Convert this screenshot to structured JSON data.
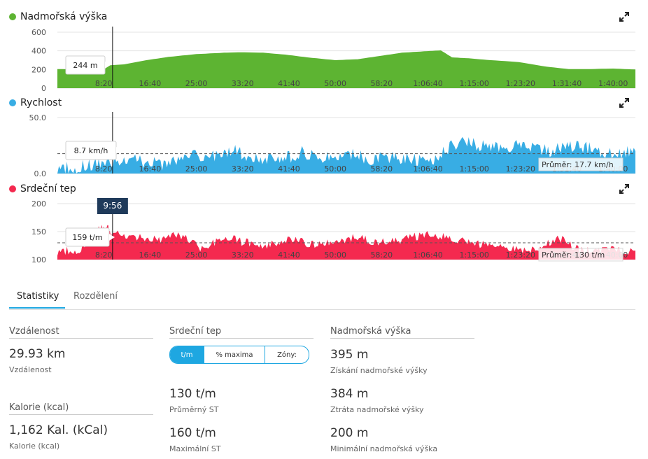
{
  "charts": {
    "elevation": {
      "title": "Nadmořská výška",
      "color": "#5db432",
      "ticks": [
        "600",
        "400",
        "200",
        "0"
      ],
      "tooltip": "244 m"
    },
    "speed": {
      "title": "Rychlost",
      "color": "#38ade4",
      "ticks": [
        "50.0",
        "0.0"
      ],
      "tooltip": "8.7 km/h",
      "avg_label": "Průměr: 17.7 km/h"
    },
    "heart": {
      "title": "Srdeční tep",
      "color": "#f4294f",
      "ticks": [
        "200",
        "150",
        "100"
      ],
      "tooltip": "159 t/m",
      "avg_label": "Průměr: 130 t/m",
      "cursor_time": "9:56"
    }
  },
  "x_labels": [
    "8:20",
    "16:40",
    "25:00",
    "33:20",
    "41:40",
    "50:00",
    "58:20",
    "1:06:40",
    "1:15:00",
    "1:23:20",
    "1:31:40",
    "1:40:00"
  ],
  "chart_data": [
    {
      "type": "area",
      "title": "Nadmořská výška",
      "ylim": [
        0,
        600
      ],
      "x_minutes": [
        0,
        5,
        9,
        12,
        16,
        20,
        25,
        30,
        33,
        37,
        41,
        45,
        50,
        54,
        58,
        62,
        66,
        69,
        71,
        74,
        78,
        83,
        88,
        92,
        96,
        100,
        104
      ],
      "y": [
        205,
        200,
        244,
        255,
        300,
        335,
        365,
        380,
        385,
        380,
        360,
        330,
        300,
        310,
        345,
        380,
        395,
        405,
        330,
        320,
        300,
        280,
        230,
        205,
        205,
        210,
        200
      ]
    },
    {
      "type": "area",
      "title": "Rychlost",
      "ylim": [
        0,
        50
      ],
      "avg": 17.7,
      "x_minutes": [
        0,
        4,
        8,
        12,
        16,
        20,
        24,
        28,
        32,
        36,
        40,
        44,
        48,
        52,
        56,
        60,
        64,
        68,
        72,
        76,
        80,
        84,
        88,
        92,
        96,
        100,
        104
      ],
      "y": [
        5,
        6,
        8.7,
        14,
        10,
        8,
        17,
        16,
        20,
        14,
        12,
        19,
        15,
        18,
        13,
        15,
        12,
        14,
        28,
        25,
        22,
        26,
        20,
        24,
        22,
        18,
        20
      ]
    },
    {
      "type": "area",
      "title": "Srdeční tep",
      "ylim": [
        100,
        200
      ],
      "avg": 130,
      "x_minutes": [
        0,
        4,
        8,
        10,
        14,
        18,
        22,
        26,
        30,
        34,
        38,
        42,
        46,
        50,
        54,
        58,
        62,
        66,
        70,
        74,
        78,
        82,
        86,
        90,
        94,
        98,
        104
      ],
      "y": [
        115,
        118,
        159,
        150,
        140,
        135,
        145,
        120,
        140,
        130,
        125,
        135,
        128,
        132,
        140,
        130,
        135,
        145,
        140,
        130,
        125,
        120,
        118,
        140,
        115,
        118,
        116
      ]
    }
  ],
  "tabs": {
    "statistics": "Statistiky",
    "splits": "Rozdělení"
  },
  "stats": {
    "distance": {
      "header": "Vzdálenost",
      "value": "29.93 km",
      "label": "Vzdálenost"
    },
    "calories": {
      "header": "Kalorie (kcal)",
      "value": "1,162 Kal. (kCal)",
      "label": "Kalorie (kcal)"
    },
    "heart": {
      "header": "Srdeční tep",
      "seg": [
        "t/m",
        "% maxima",
        "Zóny:"
      ],
      "avg_value": "130 t/m",
      "avg_label": "Průměrný ST",
      "max_value": "160 t/m",
      "max_label": "Maximální ST"
    },
    "elevation": {
      "header": "Nadmořská výška",
      "gain_value": "395 m",
      "gain_label": "Získání nadmořské výšky",
      "loss_value": "384 m",
      "loss_label": "Ztráta nadmořské výšky",
      "min_value": "200 m",
      "min_label": "Minimální nadmořská výška"
    }
  }
}
